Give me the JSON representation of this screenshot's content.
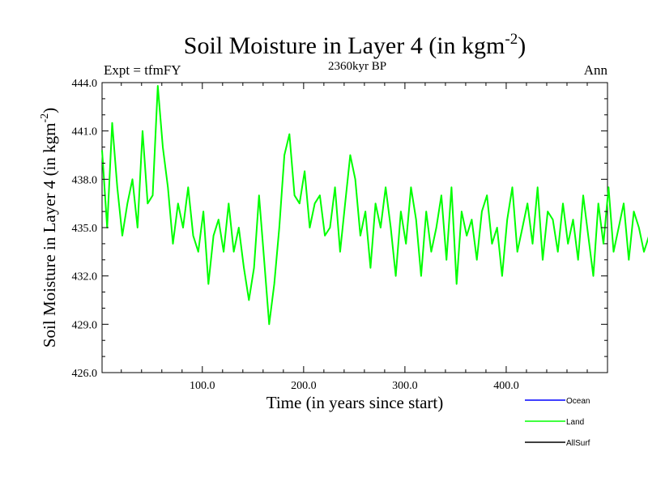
{
  "header": {
    "title_main": "Soil Moisture in Layer 4 (in kgm",
    "title_sup": "-2",
    "title_close": ")",
    "subtitle": "2360kyr BP",
    "expt": "Expt = tfmFY",
    "season": "Ann"
  },
  "colors": {
    "ocean": "#0000ff",
    "land": "#00ff00",
    "allsurf": "#000000",
    "axis": "#000000",
    "background": "#ffffff"
  },
  "chart_data": {
    "type": "line",
    "title": "Soil Moisture in Layer 4 (in kgm-2)",
    "subtitle": "2360kyr BP",
    "xlabel": "Time (in years since start)",
    "ylabel_main": "Soil Moisture in Layer 4 (in kgm",
    "ylabel_sup": "-2",
    "ylabel_close": ")",
    "xlim": [
      1,
      500
    ],
    "ylim": [
      426,
      444
    ],
    "x_ticks": [
      100,
      200,
      300,
      400
    ],
    "x_tick_labels": [
      "100.0",
      "200.0",
      "300.0",
      "400.0"
    ],
    "y_ticks": [
      426,
      429,
      432,
      435,
      438,
      441,
      444
    ],
    "y_tick_labels": [
      "426.0",
      "429.0",
      "432.0",
      "435.0",
      "438.0",
      "441.0",
      "444.0"
    ],
    "legend": [
      {
        "name": "Ocean",
        "color": "#0000ff"
      },
      {
        "name": "Land",
        "color": "#00ff00"
      },
      {
        "name": "AllSurf",
        "color": "#000000"
      }
    ],
    "series": [
      {
        "name": "Land",
        "color": "#00ff00",
        "x_start": 1,
        "x_step": 5,
        "values": [
          439.8,
          435.0,
          441.5,
          437.5,
          434.5,
          436.5,
          438.0,
          435.0,
          441.0,
          436.5,
          437.0,
          443.8,
          440.0,
          437.5,
          434.0,
          436.5,
          435.0,
          437.5,
          434.5,
          433.5,
          436.0,
          431.5,
          434.5,
          435.5,
          433.5,
          436.5,
          433.5,
          435.0,
          432.5,
          430.5,
          432.5,
          437.0,
          433.0,
          429.0,
          431.5,
          435.0,
          439.5,
          440.8,
          437.0,
          436.5,
          438.5,
          435.0,
          436.5,
          437.0,
          434.5,
          435.0,
          437.5,
          433.5,
          436.5,
          439.5,
          438.0,
          434.5,
          436.0,
          432.5,
          436.5,
          435.0,
          437.5,
          435.0,
          432.0,
          436.0,
          434.0,
          437.5,
          435.5,
          432.0,
          436.0,
          433.5,
          435.0,
          437.0,
          433.0,
          437.5,
          431.5,
          436.0,
          434.5,
          435.5,
          433.0,
          436.0,
          437.0,
          434.0,
          435.0,
          432.0,
          435.5,
          437.5,
          433.5,
          435.0,
          436.5,
          434.0,
          437.5,
          433.0,
          436.0,
          435.5,
          433.5,
          436.5,
          434.0,
          435.5,
          433.0,
          437.0,
          434.5,
          432.0,
          436.5,
          434.0,
          437.5,
          433.5,
          435.0,
          436.5,
          433.0,
          436.0,
          435.0,
          433.5,
          434.5,
          436.5,
          433.0,
          435.5,
          437.0,
          434.0,
          436.5,
          432.5,
          435.5,
          434.0,
          436.0,
          433.5,
          436.5,
          435.0,
          433.0,
          437.0,
          434.5,
          432.5,
          436.5,
          434.0,
          435.5,
          433.5,
          436.0,
          434.5,
          437.0,
          433.5,
          435.5,
          435.0,
          433.0,
          436.0,
          434.0,
          436.5,
          434.5,
          433.5,
          436.0,
          435.0,
          432.5,
          436.5,
          434.0,
          437.0,
          433.5,
          435.5,
          435.0,
          434.0,
          436.5,
          433.0,
          435.0,
          436.0,
          434.5,
          436.5,
          433.5,
          435.0,
          436.0,
          434.0,
          429.5,
          433.0,
          435.5,
          437.0,
          434.0,
          436.5,
          433.5,
          435.0,
          436.5,
          433.0,
          435.5,
          434.0,
          436.5,
          433.5,
          435.0,
          437.5,
          433.0,
          435.5,
          434.0,
          436.5,
          434.0,
          437.0,
          433.5,
          435.5,
          440.2,
          438.5,
          435.0,
          434.0
        ]
      }
    ]
  }
}
